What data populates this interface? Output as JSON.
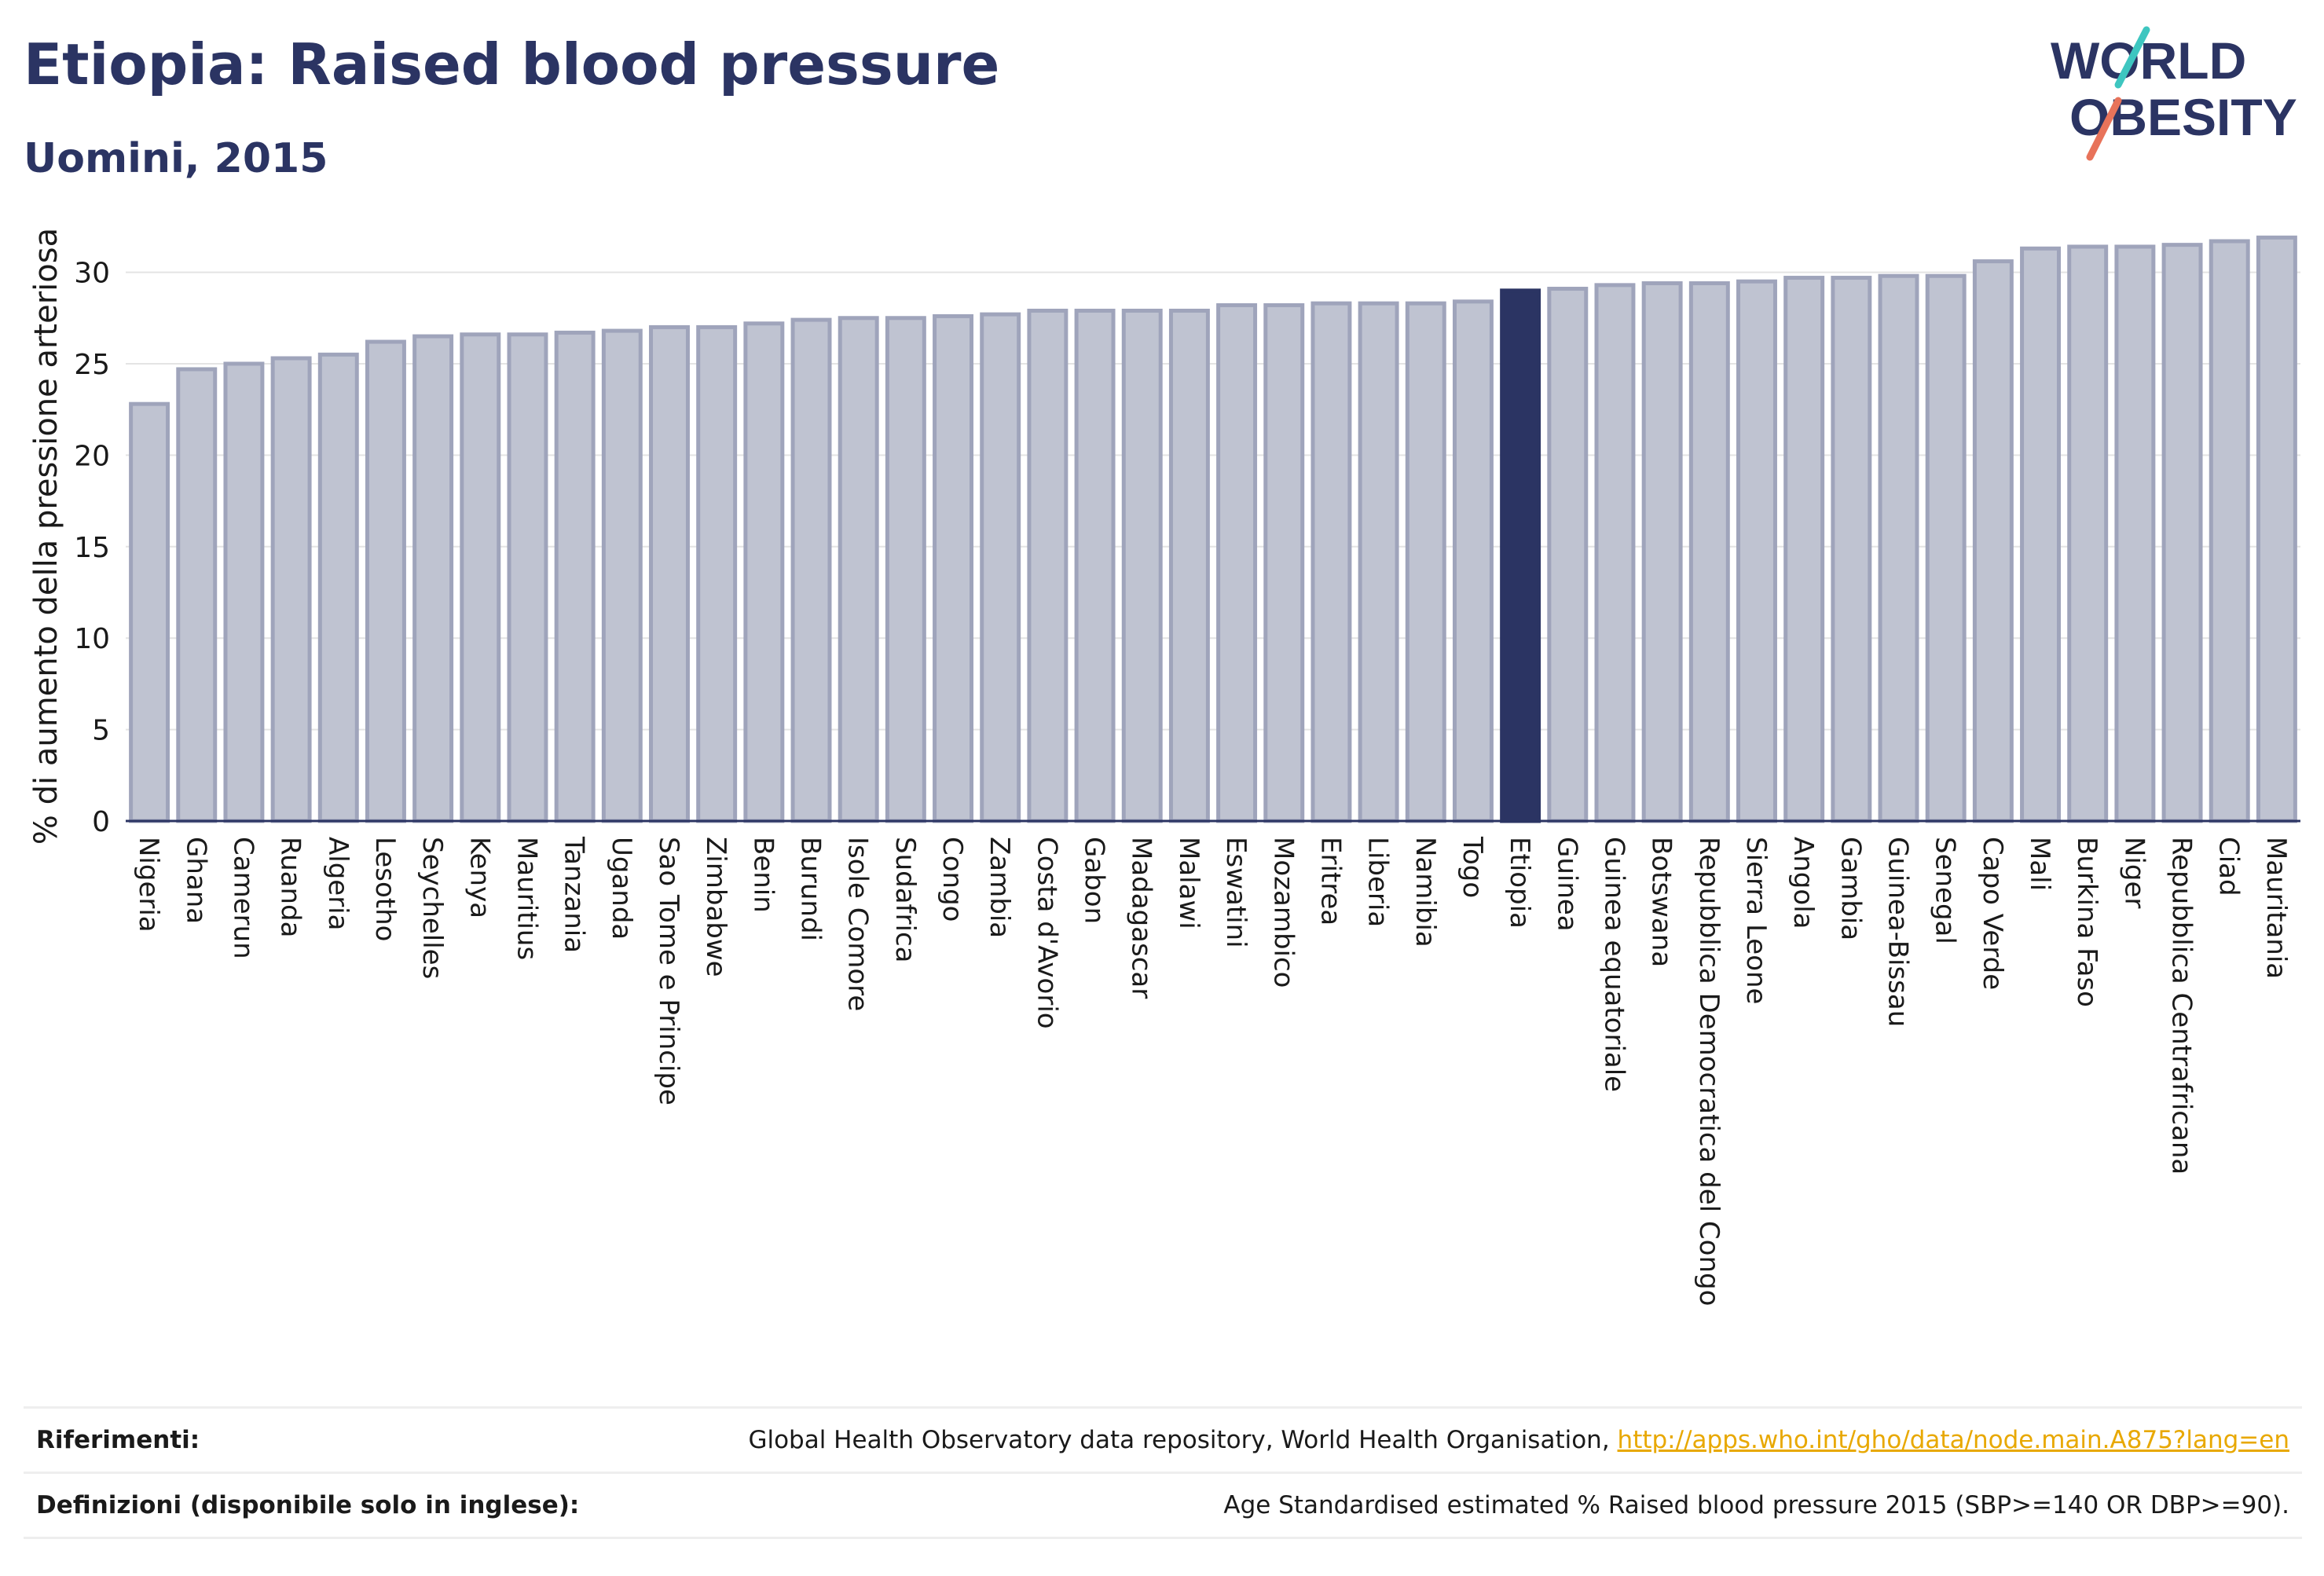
{
  "header": {
    "title": "Etiopia: Raised blood pressure",
    "subtitle": "Uomini, 2015"
  },
  "logo": {
    "line1": "WORLD",
    "line2": "OBESITY",
    "slash_colors": [
      "#3ec6c0",
      "#e8735a"
    ]
  },
  "chart_data": {
    "type": "bar",
    "ylabel": "% di aumento della pressione arteriosa",
    "xlabel": "",
    "ylim": [
      0,
      32
    ],
    "yticks": [
      0,
      5,
      10,
      15,
      20,
      25,
      30
    ],
    "grid": true,
    "highlight": "Etiopia",
    "categories": [
      "Nigeria",
      "Ghana",
      "Camerun",
      "Ruanda",
      "Algeria",
      "Lesotho",
      "Seychelles",
      "Kenya",
      "Mauritius",
      "Tanzania",
      "Uganda",
      "Sao Tome e Principe",
      "Zimbabwe",
      "Benin",
      "Burundi",
      "Isole Comore",
      "Sudafrica",
      "Congo",
      "Zambia",
      "Costa d'Avorio",
      "Gabon",
      "Madagascar",
      "Malawi",
      "Eswatini",
      "Mozambico",
      "Eritrea",
      "Liberia",
      "Namibia",
      "Togo",
      "Etiopia",
      "Guinea",
      "Guinea equatoriale",
      "Botswana",
      "Repubblica Democratica del Congo",
      "Sierra Leone",
      "Angola",
      "Gambia",
      "Guinea-Bissau",
      "Senegal",
      "Capo Verde",
      "Mali",
      "Burkina Faso",
      "Niger",
      "Repubblica Centrafricana",
      "Ciad",
      "Mauritania"
    ],
    "values": [
      22.8,
      24.7,
      25.0,
      25.3,
      25.5,
      26.2,
      26.5,
      26.6,
      26.6,
      26.7,
      26.8,
      27.0,
      27.0,
      27.2,
      27.4,
      27.5,
      27.5,
      27.6,
      27.7,
      27.9,
      27.9,
      27.9,
      27.9,
      28.2,
      28.2,
      28.3,
      28.3,
      28.3,
      28.4,
      29.0,
      29.1,
      29.3,
      29.4,
      29.4,
      29.5,
      29.7,
      29.7,
      29.8,
      29.8,
      30.6,
      31.3,
      31.4,
      31.4,
      31.5,
      31.7,
      31.9
    ],
    "colors": {
      "bar": "#bfc3d1",
      "bar_stroke": "#9fa4bb",
      "highlight": "#2b3463"
    }
  },
  "footer": {
    "references_label": "Riferimenti:",
    "references_text": "Global Health Observatory data repository, World Health Organisation, ",
    "references_link": "http://apps.who.int/gho/data/node.main.A875?lang=en",
    "definitions_label": "Definizioni (disponibile solo in inglese):",
    "definitions_text": "Age Standardised estimated % Raised blood pressure 2015 (SBP>=140 OR DBP>=90)."
  }
}
